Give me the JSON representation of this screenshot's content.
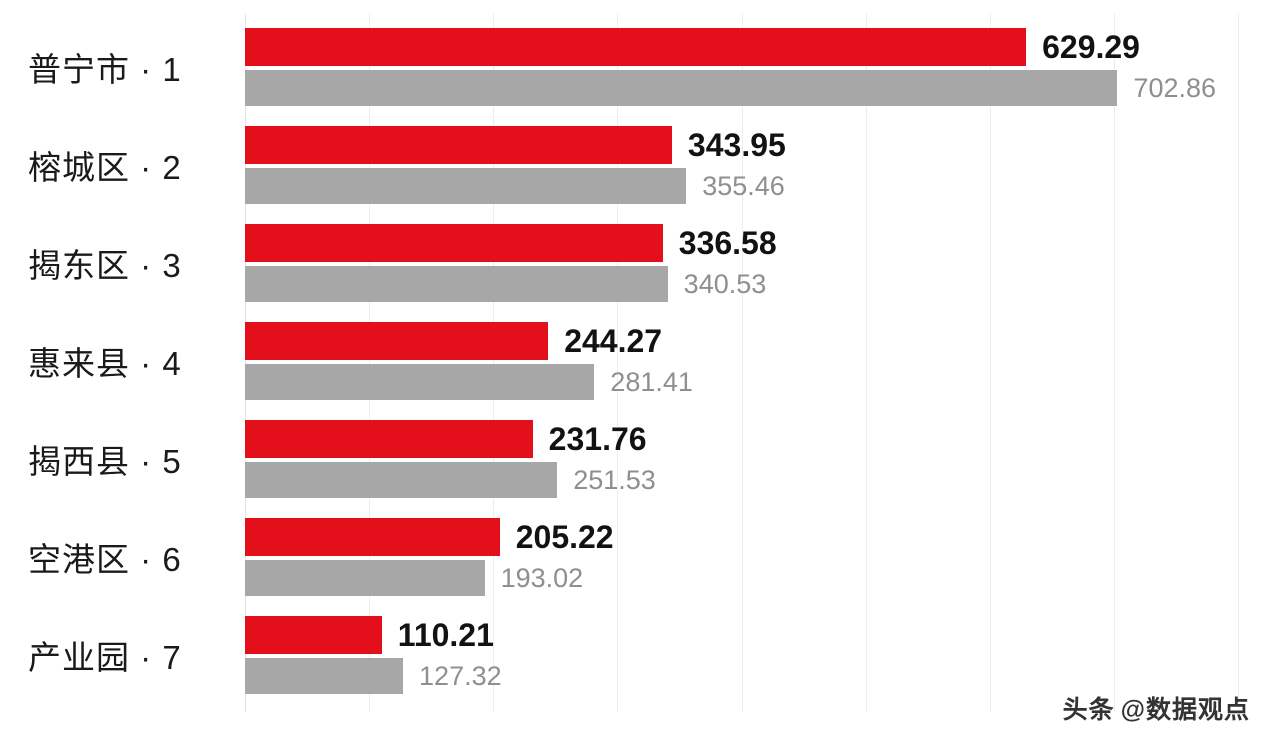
{
  "chart_data": {
    "type": "bar",
    "orientation": "horizontal",
    "title": "",
    "categories": [
      "普宁市 · 1",
      "榕城区 · 2",
      "揭东区 · 3",
      "惠来县 · 4",
      "揭西县 · 5",
      "空港区 · 6",
      "产业园 · 7"
    ],
    "series": [
      {
        "name": "red",
        "color": "#e3101c",
        "values": [
          629.29,
          343.95,
          336.58,
          244.27,
          231.76,
          205.22,
          110.21
        ]
      },
      {
        "name": "gray",
        "color": "#a7a7a7",
        "values": [
          702.86,
          355.46,
          340.53,
          281.41,
          251.53,
          193.02,
          127.32
        ]
      }
    ],
    "xlim": [
      0,
      800
    ],
    "gridline_step": 100,
    "grid": true,
    "legend": false
  },
  "colors": {
    "bar_primary": "#e3101c",
    "bar_secondary": "#a7a7a7",
    "value_primary": "#121212",
    "value_secondary": "#8f8f8f",
    "gridline": "#ededed",
    "background": "#ffffff"
  },
  "watermark": {
    "source": "头条",
    "handle": "@数据观点"
  }
}
